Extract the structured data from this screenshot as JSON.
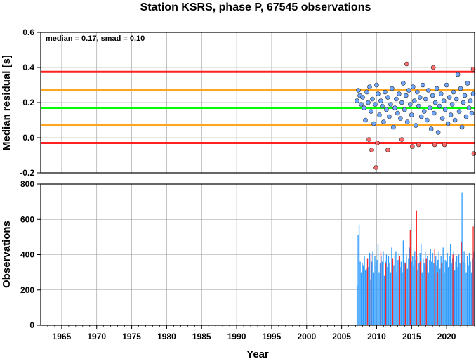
{
  "chart_data": [
    {
      "type": "scatter",
      "title": "Station KSRS, phase P, 67545 observations",
      "ylabel": "Median residual [s]",
      "xlim": [
        1962,
        2024
      ],
      "ylim": [
        -0.2,
        0.6
      ],
      "yticks": [
        -0.2,
        0.0,
        0.2,
        0.4,
        0.6
      ],
      "ytick_labels": [
        "-0.2",
        "0.0",
        "0.2",
        "0.4",
        "0.6"
      ],
      "grid": true,
      "annotation": "median = 0.17, smad = 0.10",
      "reference_lines": [
        {
          "y": 0.375,
          "color": "#ff2020"
        },
        {
          "y": 0.27,
          "color": "#ffa520"
        },
        {
          "y": 0.17,
          "color": "#00ff00"
        },
        {
          "y": 0.07,
          "color": "#ffa520"
        },
        {
          "y": -0.03,
          "color": "#ff2020"
        }
      ],
      "series": [
        {
          "color": "#6fa6ff",
          "points": [
            [
              2007.2,
              0.21
            ],
            [
              2007.4,
              0.27
            ],
            [
              2007.6,
              0.24
            ],
            [
              2007.8,
              0.19
            ],
            [
              2008.0,
              0.23
            ],
            [
              2008.2,
              0.17
            ],
            [
              2008.4,
              0.1
            ],
            [
              2008.6,
              0.26
            ],
            [
              2008.8,
              0.2
            ],
            [
              2009.0,
              0.29
            ],
            [
              2009.2,
              0.15
            ],
            [
              2009.4,
              0.22
            ],
            [
              2009.6,
              0.08
            ],
            [
              2009.8,
              0.19
            ],
            [
              2010.0,
              0.3
            ],
            [
              2010.2,
              0.25
            ],
            [
              2010.4,
              0.13
            ],
            [
              2010.6,
              0.21
            ],
            [
              2010.8,
              0.18
            ],
            [
              2011.0,
              0.09
            ],
            [
              2011.2,
              0.26
            ],
            [
              2011.4,
              0.16
            ],
            [
              2011.6,
              0.23
            ],
            [
              2011.8,
              0.12
            ],
            [
              2012.0,
              0.19
            ],
            [
              2012.2,
              0.28
            ],
            [
              2012.4,
              0.06
            ],
            [
              2012.6,
              0.17
            ],
            [
              2012.8,
              0.22
            ],
            [
              2013.0,
              0.14
            ],
            [
              2013.2,
              0.25
            ],
            [
              2013.4,
              0.11
            ],
            [
              2013.6,
              0.2
            ],
            [
              2013.8,
              0.31
            ],
            [
              2014.0,
              0.16
            ],
            [
              2014.2,
              0.24
            ],
            [
              2014.4,
              0.09
            ],
            [
              2014.6,
              0.27
            ],
            [
              2014.8,
              0.19
            ],
            [
              2015.0,
              0.13
            ],
            [
              2015.2,
              0.29
            ],
            [
              2015.4,
              0.21
            ],
            [
              2015.6,
              0.07
            ],
            [
              2015.8,
              0.26
            ],
            [
              2016.0,
              0.18
            ],
            [
              2016.2,
              0.23
            ],
            [
              2016.4,
              0.12
            ],
            [
              2016.6,
              0.3
            ],
            [
              2016.8,
              0.15
            ],
            [
              2017.0,
              0.22
            ],
            [
              2017.2,
              0.1
            ],
            [
              2017.4,
              0.27
            ],
            [
              2017.6,
              0.17
            ],
            [
              2017.8,
              0.05
            ],
            [
              2018.0,
              0.24
            ],
            [
              2018.2,
              0.14
            ],
            [
              2018.4,
              0.2
            ],
            [
              2018.6,
              0.28
            ],
            [
              2018.8,
              0.03
            ],
            [
              2019.0,
              0.18
            ],
            [
              2019.2,
              0.25
            ],
            [
              2019.4,
              0.11
            ],
            [
              2019.6,
              0.21
            ],
            [
              2019.8,
              0.16
            ],
            [
              2020.0,
              0.3
            ],
            [
              2020.2,
              0.08
            ],
            [
              2020.4,
              0.23
            ],
            [
              2020.6,
              0.13
            ],
            [
              2020.8,
              0.19
            ],
            [
              2021.0,
              0.26
            ],
            [
              2021.2,
              0.1
            ],
            [
              2021.4,
              0.22
            ],
            [
              2021.6,
              0.36
            ],
            [
              2021.8,
              0.15
            ],
            [
              2022.0,
              0.28
            ],
            [
              2022.2,
              0.06
            ],
            [
              2022.4,
              0.2
            ],
            [
              2022.6,
              0.24
            ],
            [
              2022.8,
              0.12
            ],
            [
              2023.0,
              0.31
            ],
            [
              2023.2,
              0.17
            ],
            [
              2023.4,
              0.21
            ],
            [
              2023.6,
              0.14
            ],
            [
              2023.8,
              0.25
            ]
          ]
        },
        {
          "color": "#ff6a6a",
          "points": [
            [
              2008.9,
              -0.01
            ],
            [
              2009.3,
              -0.07
            ],
            [
              2009.9,
              -0.17
            ],
            [
              2010.1,
              -0.03
            ],
            [
              2011.6,
              -0.07
            ],
            [
              2013.6,
              -0.01
            ],
            [
              2014.3,
              0.42
            ],
            [
              2015.1,
              -0.05
            ],
            [
              2016.0,
              -0.04
            ],
            [
              2018.1,
              0.4
            ],
            [
              2018.3,
              -0.04
            ],
            [
              2019.7,
              -0.04
            ],
            [
              2023.8,
              0.39
            ],
            [
              2023.9,
              -0.09
            ]
          ]
        }
      ]
    },
    {
      "type": "bar",
      "ylabel": "Observations",
      "xlabel": "Year",
      "xlim": [
        1962,
        2024
      ],
      "ylim": [
        0,
        800
      ],
      "xticks": [
        1965,
        1970,
        1975,
        1980,
        1985,
        1990,
        1995,
        2000,
        2005,
        2010,
        2015,
        2020
      ],
      "xtick_labels": [
        "1965",
        "1970",
        "1975",
        "1980",
        "1985",
        "1990",
        "1995",
        "2000",
        "2005",
        "2010",
        "2015",
        "2020"
      ],
      "yticks": [
        0,
        200,
        400,
        600,
        800
      ],
      "ytick_labels": [
        "0",
        "200",
        "400",
        "600",
        "800"
      ],
      "grid": true,
      "series": [
        {
          "color": "#2e9bff",
          "x": [
            2007.2,
            2007.35,
            2007.5,
            2007.65,
            2007.8,
            2007.95,
            2008.1,
            2008.25,
            2008.4,
            2008.55,
            2008.7,
            2008.85,
            2009.0,
            2009.15,
            2009.3,
            2009.45,
            2009.6,
            2009.75,
            2009.9,
            2010.05,
            2010.2,
            2010.35,
            2010.5,
            2010.65,
            2010.8,
            2010.95,
            2011.1,
            2011.25,
            2011.4,
            2011.55,
            2011.7,
            2011.85,
            2012.0,
            2012.15,
            2012.3,
            2012.45,
            2012.6,
            2012.75,
            2012.9,
            2013.05,
            2013.2,
            2013.35,
            2013.5,
            2013.65,
            2013.8,
            2013.95,
            2014.1,
            2014.25,
            2014.4,
            2014.55,
            2014.7,
            2014.85,
            2015.0,
            2015.15,
            2015.3,
            2015.45,
            2015.6,
            2015.75,
            2015.9,
            2016.05,
            2016.2,
            2016.35,
            2016.5,
            2016.65,
            2016.8,
            2016.95,
            2017.1,
            2017.25,
            2017.4,
            2017.55,
            2017.7,
            2017.85,
            2018.0,
            2018.15,
            2018.3,
            2018.45,
            2018.6,
            2018.75,
            2018.9,
            2019.05,
            2019.2,
            2019.35,
            2019.5,
            2019.65,
            2019.8,
            2019.95,
            2020.1,
            2020.25,
            2020.4,
            2020.55,
            2020.7,
            2020.85,
            2021.0,
            2021.15,
            2021.3,
            2021.45,
            2021.6,
            2021.75,
            2021.9,
            2022.05,
            2022.2,
            2022.35,
            2022.5,
            2022.65,
            2022.8,
            2022.95,
            2023.1,
            2023.25,
            2023.4,
            2023.55,
            2023.7,
            2023.85
          ],
          "values": [
            230,
            510,
            570,
            360,
            300,
            350,
            340,
            390,
            310,
            320,
            380,
            330,
            410,
            260,
            360,
            420,
            300,
            390,
            340,
            370,
            460,
            300,
            350,
            390,
            360,
            420,
            280,
            360,
            400,
            330,
            390,
            350,
            300,
            440,
            360,
            340,
            390,
            420,
            300,
            370,
            410,
            330,
            360,
            300,
            480,
            360,
            350,
            400,
            320,
            380,
            440,
            300,
            360,
            390,
            340,
            420,
            370,
            310,
            390,
            350,
            410,
            460,
            300,
            380,
            350,
            420,
            340,
            390,
            300,
            370,
            430,
            360,
            410,
            350,
            300,
            390,
            340,
            370,
            420,
            320,
            390,
            350,
            440,
            300,
            370,
            360,
            410,
            330,
            390,
            460,
            350,
            380,
            420,
            310,
            360,
            390,
            330,
            400,
            350,
            470,
            750,
            360,
            420,
            350,
            300,
            390,
            340,
            410,
            360,
            300,
            380,
            420
          ]
        },
        {
          "color": "#ff2828",
          "x": [
            2008.7,
            2009.2,
            2010.6,
            2011.3,
            2012.3,
            2013.3,
            2014.1,
            2014.8,
            2015.7,
            2016.2,
            2017.1,
            2018.3,
            2018.7,
            2019.3,
            2020.9,
            2022.1,
            2023.8
          ],
          "values": [
            380,
            400,
            420,
            350,
            380,
            390,
            350,
            540,
            650,
            360,
            380,
            430,
            300,
            350,
            400,
            470,
            560
          ]
        }
      ]
    }
  ]
}
